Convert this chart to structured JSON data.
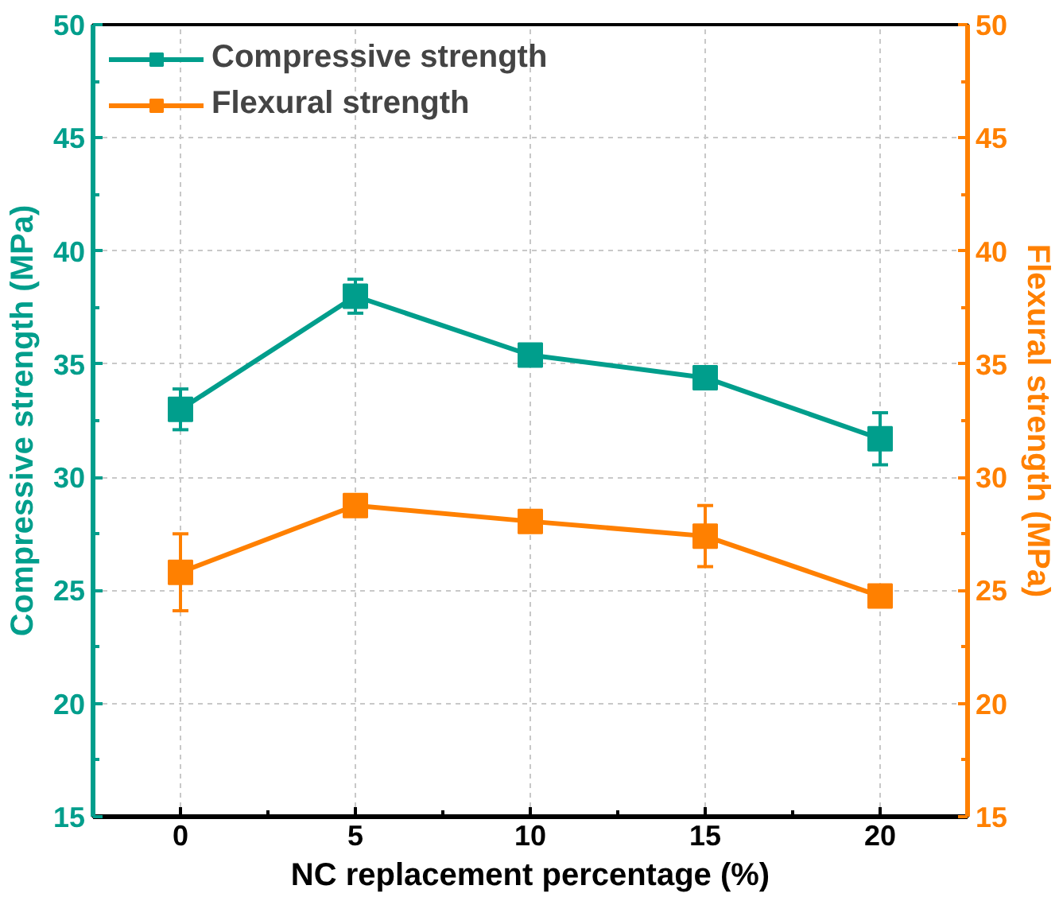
{
  "chart_data": {
    "type": "line",
    "xlabel": "NC replacement percentage (%)",
    "ylabel": "Compressive strength (MPa)",
    "y2label": "Flexural strength (MPa)",
    "x": [
      0,
      5,
      10,
      15,
      20
    ],
    "xlim": [
      -2.5,
      22.5
    ],
    "xticks": [
      0,
      5,
      10,
      15,
      20
    ],
    "ylim": [
      15,
      50
    ],
    "yticks": [
      15,
      20,
      25,
      30,
      35,
      40,
      45,
      50
    ],
    "y2lim": [
      15,
      50
    ],
    "y2ticks": [
      15,
      20,
      25,
      30,
      35,
      40,
      45,
      50
    ],
    "series": [
      {
        "name": "Compressive strength",
        "color": "#009e8c",
        "values": [
          33.0,
          38.0,
          35.4,
          34.4,
          31.7
        ],
        "errors": [
          0.9,
          0.75,
          null,
          null,
          1.15
        ]
      },
      {
        "name": "Flexural strength",
        "color": "#ff8000",
        "axis": "y2",
        "values": [
          25.8,
          28.75,
          28.05,
          27.4,
          24.75
        ],
        "errors": [
          1.7,
          null,
          0.35,
          1.35,
          null
        ]
      }
    ],
    "grid": true,
    "legend": "top left",
    "marker": "square",
    "line_style": "solid"
  }
}
